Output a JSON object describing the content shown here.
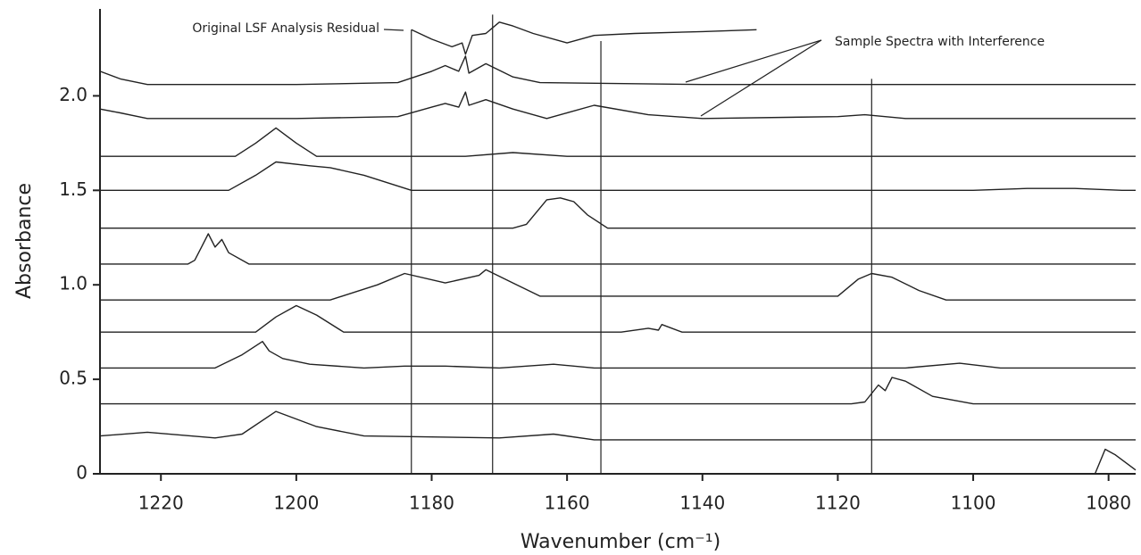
{
  "chart_data": {
    "type": "line",
    "color": "#222222",
    "x_label": "Wavenumber (cm⁻¹)",
    "y_label": "Absorbance",
    "annotations": [
      "Original LSF Analysis Residual",
      "Sample Spectra with Interference"
    ],
    "xlim": [
      1229,
      1076
    ],
    "xticks": [
      1220,
      1200,
      1180,
      1160,
      1140,
      1120,
      1100,
      1080
    ],
    "ylim": [
      0,
      2.46
    ],
    "yticks": [
      0,
      0.5,
      {
        "value": 1,
        "label": "1.0"
      },
      1.5,
      {
        "value": 2,
        "label": "2.0"
      }
    ],
    "vlines": [
      {
        "x": 1183,
        "top": 2.35
      },
      {
        "x": 1171,
        "top": 2.43
      },
      {
        "x": 1155,
        "top": 2.29
      },
      {
        "x": 1115,
        "top": 2.09
      }
    ],
    "series": [
      {
        "x": [
          1183,
          1180,
          1177,
          1175.5,
          1175,
          1174,
          1172,
          1170,
          1168,
          1165,
          1160,
          1156,
          1150,
          1140,
          1132
        ],
        "values": [
          2.35,
          2.3,
          2.26,
          2.28,
          2.22,
          2.32,
          2.33,
          2.39,
          2.37,
          2.33,
          2.28,
          2.32,
          2.33,
          2.34,
          2.35
        ]
      },
      {
        "x": [
          1229,
          1226,
          1222,
          1200,
          1185,
          1180,
          1178,
          1176,
          1175,
          1174.5,
          1172,
          1168,
          1164,
          1140,
          1076
        ],
        "values": [
          2.13,
          2.09,
          2.06,
          2.06,
          2.07,
          2.13,
          2.16,
          2.13,
          2.21,
          2.12,
          2.17,
          2.1,
          2.07,
          2.06,
          2.06
        ]
      },
      {
        "x": [
          1229,
          1226,
          1222,
          1200,
          1185,
          1180,
          1178,
          1176,
          1175,
          1174.5,
          1172,
          1168,
          1163,
          1156,
          1148,
          1140,
          1120,
          1116,
          1110,
          1076
        ],
        "values": [
          1.93,
          1.91,
          1.88,
          1.88,
          1.89,
          1.94,
          1.96,
          1.94,
          2.02,
          1.95,
          1.98,
          1.93,
          1.88,
          1.95,
          1.9,
          1.88,
          1.89,
          1.9,
          1.88,
          1.88
        ]
      },
      {
        "x": [
          1229,
          1209,
          1206,
          1203,
          1200,
          1197,
          1175,
          1168,
          1160,
          1076
        ],
        "values": [
          1.68,
          1.68,
          1.75,
          1.83,
          1.75,
          1.68,
          1.68,
          1.7,
          1.68,
          1.68
        ]
      },
      {
        "x": [
          1229,
          1210,
          1206,
          1203,
          1198,
          1195,
          1190,
          1183,
          1100,
          1092,
          1085,
          1078,
          1076
        ],
        "values": [
          1.5,
          1.5,
          1.58,
          1.65,
          1.63,
          1.62,
          1.58,
          1.5,
          1.5,
          1.51,
          1.51,
          1.5,
          1.5
        ]
      },
      {
        "x": [
          1229,
          1168,
          1166,
          1163,
          1161,
          1159,
          1157,
          1154,
          1076
        ],
        "values": [
          1.3,
          1.3,
          1.32,
          1.45,
          1.46,
          1.44,
          1.37,
          1.3,
          1.3
        ]
      },
      {
        "x": [
          1229,
          1216,
          1215,
          1214,
          1213,
          1212,
          1211,
          1210,
          1207,
          1076
        ],
        "values": [
          1.11,
          1.11,
          1.13,
          1.2,
          1.27,
          1.2,
          1.24,
          1.17,
          1.11,
          1.11
        ]
      },
      {
        "x": [
          1229,
          1195,
          1188,
          1184,
          1178,
          1173,
          1172,
          1168,
          1164,
          1120,
          1117,
          1115,
          1112,
          1108,
          1104,
          1076
        ],
        "values": [
          0.92,
          0.92,
          1.0,
          1.06,
          1.01,
          1.05,
          1.08,
          1.01,
          0.94,
          0.94,
          1.03,
          1.06,
          1.04,
          0.97,
          0.92,
          0.92
        ]
      },
      {
        "x": [
          1229,
          1206,
          1203,
          1200,
          1197,
          1193,
          1152,
          1148,
          1146.5,
          1146,
          1143,
          1076
        ],
        "values": [
          0.75,
          0.75,
          0.83,
          0.89,
          0.84,
          0.75,
          0.75,
          0.77,
          0.76,
          0.79,
          0.75,
          0.75
        ]
      },
      {
        "x": [
          1229,
          1212,
          1208,
          1205,
          1204,
          1202,
          1198,
          1190,
          1184,
          1178,
          1170,
          1162,
          1156,
          1110,
          1102,
          1096,
          1076
        ],
        "values": [
          0.56,
          0.56,
          0.63,
          0.7,
          0.65,
          0.61,
          0.58,
          0.56,
          0.57,
          0.57,
          0.56,
          0.58,
          0.56,
          0.56,
          0.585,
          0.56,
          0.56
        ]
      },
      {
        "x": [
          1229,
          1118,
          1116,
          1114,
          1113,
          1112,
          1110,
          1106,
          1100,
          1076
        ],
        "values": [
          0.37,
          0.37,
          0.38,
          0.47,
          0.44,
          0.51,
          0.49,
          0.41,
          0.37,
          0.37
        ]
      },
      {
        "x": [
          1229,
          1222,
          1212,
          1208,
          1203,
          1200,
          1197,
          1190,
          1170,
          1162,
          1156,
          1076
        ],
        "values": [
          0.2,
          0.22,
          0.19,
          0.21,
          0.33,
          0.29,
          0.25,
          0.2,
          0.19,
          0.21,
          0.18,
          0.18
        ]
      },
      {
        "x": [
          1082,
          1080.5,
          1079,
          1076
        ],
        "values": [
          0,
          0.13,
          0.1,
          0.02
        ]
      }
    ]
  }
}
